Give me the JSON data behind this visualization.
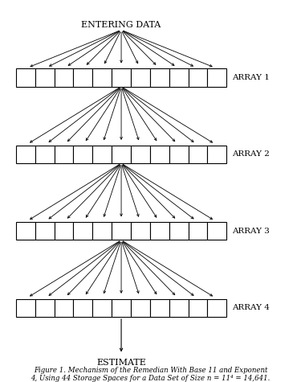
{
  "num_arrays": 4,
  "num_cells": 11,
  "array_labels": [
    "ARRAY 1",
    "ARRAY 2",
    "ARRAY 3",
    "ARRAY 4"
  ],
  "top_label": "ENTERING DATA",
  "bottom_label": "ESTIMATE",
  "caption_line1": "Figure 1. Mechanism of the Remedian With Base 11 and Exponent",
  "caption_line2": "4, Using 44 Storage Spaces for a Data Set of Size n = 11⁴ = 14,641.",
  "bg_color": "#ffffff",
  "box_color": "#ffffff",
  "box_edge_color": "#000000",
  "arrow_color": "#000000",
  "text_color": "#000000",
  "fig_width": 3.75,
  "fig_height": 4.75,
  "dpi": 100
}
